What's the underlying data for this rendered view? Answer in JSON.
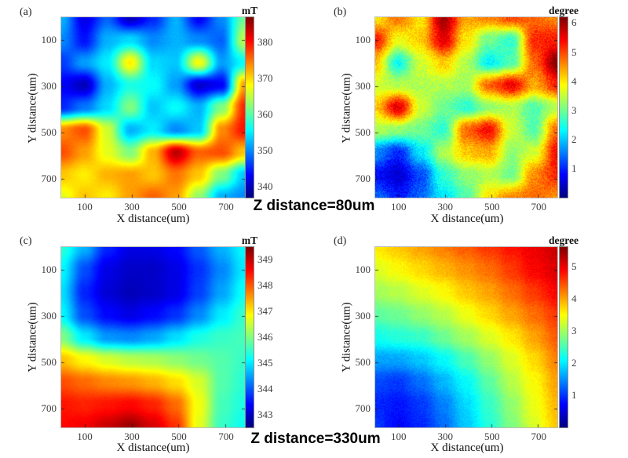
{
  "captions": {
    "row1": "Z distance=80um",
    "row2": "Z distance=330um"
  },
  "colors": {
    "background": "#ffffff",
    "text": "#222222",
    "colormap_low": "#00007f",
    "colormap_high": "#7f0000"
  },
  "chart_data": [
    {
      "id": "a",
      "type": "heatmap",
      "panel_label": "(a)",
      "colorbar_unit": "mT",
      "xlabel": "X distance(um)",
      "ylabel": "Y distance(um)",
      "x_ticks": [
        100,
        300,
        500,
        700
      ],
      "y_ticks": [
        100,
        300,
        500,
        700
      ],
      "x_range": [
        0,
        780
      ],
      "y_range": [
        0,
        780
      ],
      "color_range": [
        337,
        387
      ],
      "colorbar_ticks": [
        340,
        350,
        360,
        370,
        380
      ],
      "colormap": "jet",
      "noise": 0.4,
      "values": [
        [
          352,
          342,
          348,
          340,
          345,
          352,
          343,
          350,
          361
        ],
        [
          350,
          344,
          352,
          354,
          350,
          352,
          350,
          348,
          365
        ],
        [
          346,
          351,
          355,
          369,
          354,
          353,
          368,
          351,
          356
        ],
        [
          343,
          340,
          352,
          357,
          356,
          351,
          341,
          343,
          373
        ],
        [
          345,
          349,
          354,
          362,
          353,
          356,
          352,
          362,
          379
        ],
        [
          374,
          377,
          366,
          352,
          355,
          350,
          353,
          374,
          380
        ],
        [
          377,
          373,
          367,
          362,
          372,
          384,
          376,
          377,
          371
        ],
        [
          371,
          369,
          372,
          373,
          371,
          375,
          371,
          362,
          353
        ],
        [
          367,
          371,
          369,
          373,
          376,
          373,
          363,
          352,
          350
        ]
      ]
    },
    {
      "id": "b",
      "type": "heatmap",
      "panel_label": "(b)",
      "colorbar_unit": "degree",
      "xlabel": "X distance(um)",
      "ylabel": "Y distance(um)",
      "x_ticks": [
        100,
        300,
        500,
        700
      ],
      "y_ticks": [
        100,
        300,
        500,
        700
      ],
      "x_range": [
        0,
        780
      ],
      "y_range": [
        0,
        780
      ],
      "color_range": [
        0,
        6.2
      ],
      "colorbar_ticks": [
        1,
        2,
        3,
        4,
        5,
        6
      ],
      "colormap": "jet",
      "noise": 0.3,
      "values": [
        [
          4.0,
          4.7,
          4.0,
          6.0,
          4.4,
          4.6,
          5.0,
          4.8,
          4.6
        ],
        [
          5.3,
          3.8,
          4.2,
          5.6,
          4.0,
          3.0,
          2.6,
          5.2,
          5.3
        ],
        [
          4.2,
          2.4,
          3.6,
          4.2,
          3.4,
          2.3,
          2.8,
          4.8,
          6.2
        ],
        [
          3.6,
          3.4,
          3.4,
          3.4,
          3.3,
          4.8,
          5.5,
          4.4,
          5.2
        ],
        [
          4.2,
          5.6,
          3.6,
          3.0,
          2.6,
          3.2,
          3.4,
          2.8,
          3.4
        ],
        [
          3.4,
          3.2,
          3.0,
          2.6,
          4.8,
          5.4,
          3.6,
          2.8,
          4.8
        ],
        [
          1.6,
          1.0,
          2.2,
          3.4,
          4.2,
          4.4,
          3.2,
          3.6,
          5.4
        ],
        [
          0.8,
          0.5,
          1.2,
          2.6,
          3.2,
          3.4,
          3.0,
          4.6,
          5.2
        ],
        [
          1.4,
          0.9,
          1.4,
          2.2,
          2.8,
          4.0,
          4.6,
          4.8,
          4.6
        ]
      ]
    },
    {
      "id": "c",
      "type": "heatmap",
      "panel_label": "(c)",
      "colorbar_unit": "mT",
      "xlabel": "X distance(um)",
      "ylabel": "Y distance(um)",
      "x_ticks": [
        100,
        300,
        500,
        700
      ],
      "y_ticks": [
        100,
        300,
        500,
        700
      ],
      "x_range": [
        0,
        780
      ],
      "y_range": [
        0,
        780
      ],
      "color_range": [
        342.5,
        349.5
      ],
      "colorbar_ticks": [
        343,
        344,
        345,
        346,
        347,
        348,
        349
      ],
      "colormap": "jet",
      "noise": 0.05,
      "values": [
        [
          345.4,
          344.6,
          343.6,
          343.2,
          343.2,
          343.4,
          344.0,
          344.6,
          345.1
        ],
        [
          345.1,
          343.9,
          343.2,
          343.0,
          343.0,
          343.2,
          343.7,
          344.3,
          345.0
        ],
        [
          344.9,
          343.6,
          343.1,
          342.9,
          343.0,
          343.2,
          343.8,
          344.5,
          345.2
        ],
        [
          345.1,
          343.9,
          343.4,
          343.2,
          343.4,
          343.7,
          344.3,
          345.0,
          345.5
        ],
        [
          346.0,
          345.0,
          344.4,
          344.3,
          344.5,
          344.9,
          345.3,
          345.5,
          345.6
        ],
        [
          347.3,
          346.9,
          346.6,
          346.4,
          346.3,
          346.1,
          345.9,
          345.7,
          345.5
        ],
        [
          348.1,
          347.9,
          347.7,
          347.6,
          347.4,
          347.1,
          346.6,
          345.7,
          345.4
        ],
        [
          348.5,
          348.4,
          348.5,
          348.6,
          348.4,
          347.9,
          346.8,
          345.6,
          345.3
        ],
        [
          348.6,
          348.7,
          349.0,
          349.3,
          348.9,
          348.3,
          346.7,
          345.5,
          345.2
        ]
      ]
    },
    {
      "id": "d",
      "type": "heatmap",
      "panel_label": "(d)",
      "colorbar_unit": "degree",
      "xlabel": "X distance(um)",
      "ylabel": "Y distance(um)",
      "x_ticks": [
        100,
        300,
        500,
        700
      ],
      "y_ticks": [
        100,
        300,
        500,
        700
      ],
      "x_range": [
        0,
        780
      ],
      "y_range": [
        0,
        780
      ],
      "color_range": [
        0,
        5.6
      ],
      "colorbar_ticks": [
        1,
        2,
        3,
        4,
        5
      ],
      "colormap": "jet",
      "noise": 0.12,
      "values": [
        [
          3.6,
          3.8,
          4.0,
          4.2,
          4.4,
          4.6,
          4.8,
          5.0,
          5.2
        ],
        [
          3.3,
          3.5,
          3.7,
          3.9,
          4.1,
          4.3,
          4.6,
          4.9,
          5.1
        ],
        [
          3.0,
          3.1,
          3.3,
          3.5,
          3.8,
          4.0,
          4.3,
          4.6,
          4.9
        ],
        [
          2.6,
          2.7,
          2.9,
          3.1,
          3.4,
          3.7,
          4.0,
          4.3,
          4.6
        ],
        [
          2.2,
          2.3,
          2.4,
          2.7,
          3.0,
          3.3,
          3.6,
          4.0,
          4.4
        ],
        [
          1.6,
          1.6,
          1.8,
          2.1,
          2.5,
          2.9,
          3.3,
          3.7,
          4.2
        ],
        [
          1.1,
          1.0,
          1.3,
          1.7,
          2.1,
          2.6,
          3.1,
          3.5,
          4.0
        ],
        [
          0.9,
          0.8,
          1.0,
          1.4,
          1.9,
          2.4,
          2.9,
          3.4,
          3.9
        ],
        [
          1.0,
          0.7,
          0.9,
          1.3,
          1.8,
          2.3,
          2.8,
          3.3,
          3.8
        ]
      ]
    }
  ]
}
